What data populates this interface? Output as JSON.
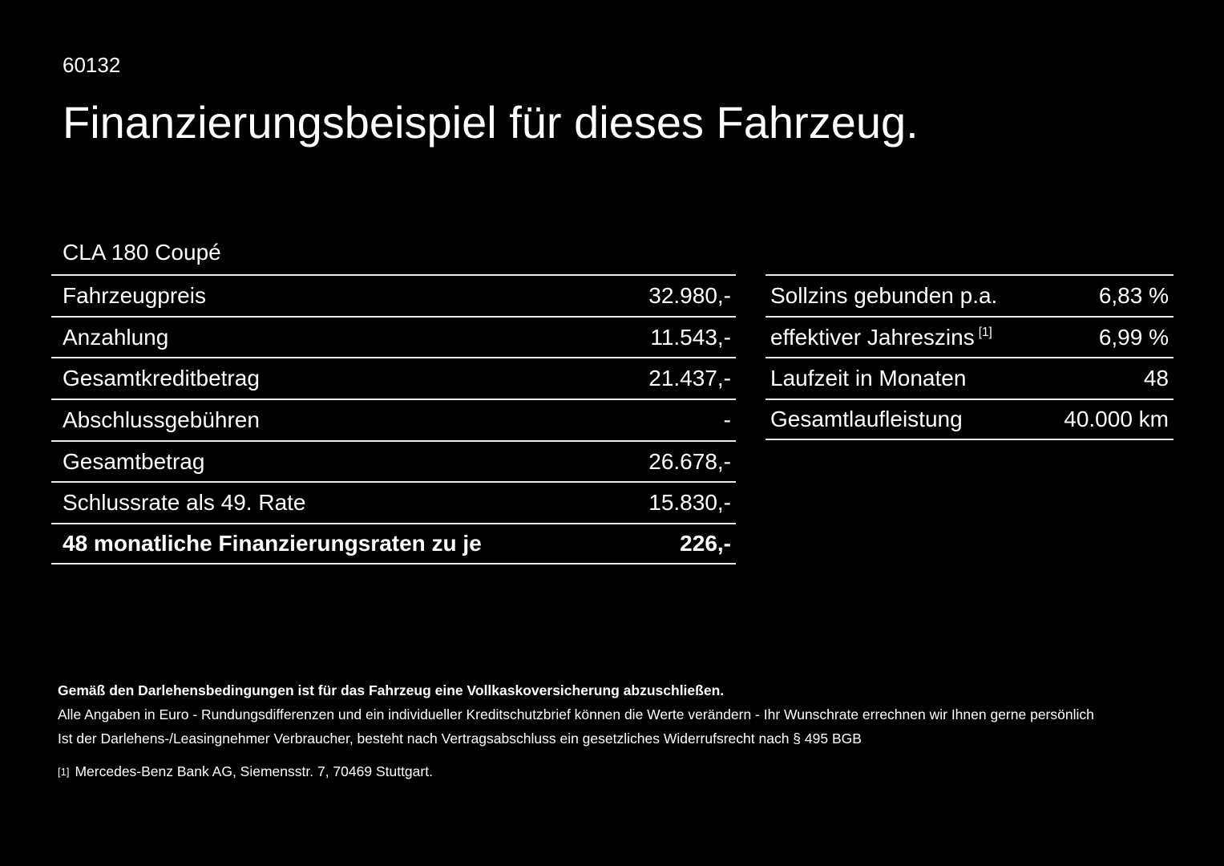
{
  "page": {
    "offer_number": "60132",
    "title": "Finanzierungsbeispiel für dieses Fahrzeug.",
    "vehicle_model": "CLA 180 Coupé"
  },
  "financing_table": {
    "rows": [
      {
        "label": "Fahrzeugpreis",
        "value": "32.980,-"
      },
      {
        "label": "Anzahlung",
        "value": "11.543,-"
      },
      {
        "label": "Gesamtkreditbetrag",
        "value": "21.437,-"
      },
      {
        "label": "Abschlussgebühren",
        "value": "-"
      },
      {
        "label": "Gesamtbetrag",
        "value": "26.678,-"
      },
      {
        "label": "Schlussrate als 49. Rate",
        "value": "15.830,-"
      },
      {
        "label": "48 monatliche Finanzierungsraten zu je",
        "value": "226,-"
      }
    ]
  },
  "conditions_table": {
    "rows": [
      {
        "label": "Sollzins gebunden p.a.",
        "value": "6,83 %"
      },
      {
        "label": "effektiver Jahreszins",
        "superscript": "[1]",
        "value": "6,99 %"
      },
      {
        "label": "Laufzeit in Monaten",
        "value": "48"
      },
      {
        "label": "Gesamtlaufleistung",
        "value": "40.000 km"
      }
    ]
  },
  "footer": {
    "insurance_note": "Gemäß den Darlehensbedingungen ist für das Fahrzeug eine Vollkaskoversicherung abzuschließen.",
    "disclaimer_note": "Alle Angaben in Euro - Rundungsdifferenzen und ein individueller Kreditschutzbrief können die Werte verändern - Ihr Wunschrate errechnen wir Ihnen gerne persönlich",
    "withdrawal_note": "Ist der Darlehens-/Leasingnehmer Verbraucher, besteht nach Vertragsabschluss ein gesetzliches Widerrufsrecht nach § 495 BGB",
    "footnote_marker": "[1]",
    "footnote_text": "Mercedes-Benz Bank AG, Siemensstr. 7, 70469 Stuttgart."
  }
}
